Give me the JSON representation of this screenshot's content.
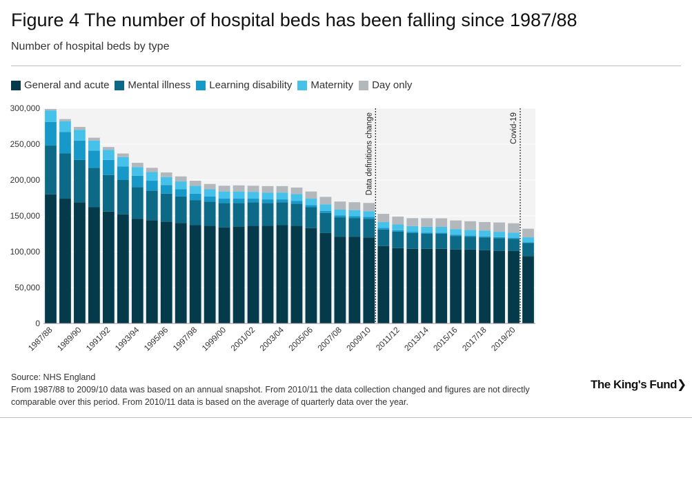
{
  "header": {
    "title": "Figure 4 The number of hospital beds has been falling since 1987/88",
    "subtitle": "Number of hospital beds by type"
  },
  "colors": {
    "general_and_acute": "#043a4a",
    "mental_illness": "#0d6a86",
    "learning_disability": "#1698c9",
    "maternity": "#45c1ea",
    "day_only": "#b3b8bc",
    "plot_background": "#f3f3f3",
    "gridline": "#ffffff"
  },
  "chart_data": {
    "type": "bar",
    "stacked": true,
    "title": "Number of hospital beds by type",
    "xlabel": "",
    "ylabel": "",
    "ylim": [
      0,
      300000
    ],
    "yticks": [
      "0",
      "50,000",
      "100,000",
      "150,000",
      "200,000",
      "250,000",
      "300,000"
    ],
    "ytick_values": [
      0,
      50000,
      100000,
      150000,
      200000,
      250000,
      300000
    ],
    "grid": true,
    "legend_position": "top-left",
    "categories": [
      "1987/88",
      "1988/89",
      "1989/90",
      "1990/91",
      "1991/92",
      "1992/93",
      "1993/94",
      "1994/95",
      "1995/96",
      "1996/97",
      "1997/98",
      "1998/99",
      "1999/00",
      "2000/01",
      "2001/02",
      "2002/03",
      "2003/04",
      "2004/05",
      "2005/06",
      "2006/07",
      "2007/08",
      "2008/09",
      "2009/10",
      "2010/11",
      "2011/12",
      "2012/13",
      "2013/14",
      "2014/15",
      "2015/16",
      "2016/17",
      "2017/18",
      "2018/19",
      "2019/20",
      "2020/21"
    ],
    "tick_labels": [
      {
        "index": 0,
        "label": "1987/88"
      },
      {
        "index": 2,
        "label": "1989/90"
      },
      {
        "index": 4,
        "label": "1991/92"
      },
      {
        "index": 6,
        "label": "1993/94"
      },
      {
        "index": 8,
        "label": "1995/96"
      },
      {
        "index": 10,
        "label": "1997/98"
      },
      {
        "index": 12,
        "label": "1999/00"
      },
      {
        "index": 14,
        "label": "2001/02"
      },
      {
        "index": 16,
        "label": "2003/04"
      },
      {
        "index": 18,
        "label": "2005/06"
      },
      {
        "index": 20,
        "label": "2007/08"
      },
      {
        "index": 22,
        "label": "2009/10"
      },
      {
        "index": 24,
        "label": "2011/12"
      },
      {
        "index": 26,
        "label": "2013/14"
      },
      {
        "index": 28,
        "label": "2015/16"
      },
      {
        "index": 30,
        "label": "2017/18"
      },
      {
        "index": 32,
        "label": "2019/20"
      }
    ],
    "series": [
      {
        "name": "General and acute",
        "color_key": "general_and_acute",
        "values": [
          180000,
          174000,
          169000,
          162000,
          156000,
          152000,
          146000,
          144000,
          142000,
          140000,
          137000,
          136000,
          134000,
          135000,
          136000,
          136000,
          137000,
          136000,
          133000,
          126000,
          121000,
          121000,
          120000,
          108000,
          105000,
          104000,
          104000,
          104000,
          103000,
          103000,
          102000,
          101000,
          101000,
          94000
        ]
      },
      {
        "name": "Mental illness",
        "color_key": "mental_illness",
        "values": [
          68000,
          63000,
          59000,
          55000,
          51000,
          48000,
          44000,
          41000,
          39000,
          37000,
          35000,
          34000,
          34000,
          33000,
          33000,
          32000,
          32000,
          31000,
          29000,
          28000,
          27000,
          26000,
          26000,
          23000,
          23000,
          22000,
          21000,
          21000,
          19000,
          18000,
          18000,
          18000,
          17000,
          18000
        ]
      },
      {
        "name": "Learning disability",
        "color_key": "learning_disability",
        "values": [
          33000,
          30000,
          27000,
          24000,
          21000,
          19000,
          16000,
          14000,
          12000,
          10000,
          9000,
          7000,
          6000,
          6000,
          5000,
          5000,
          4000,
          4000,
          3000,
          3000,
          2500,
          2500,
          2500,
          2300,
          2000,
          1800,
          1700,
          1600,
          1600,
          1500,
          1400,
          1300,
          1200,
          1100
        ]
      },
      {
        "name": "Maternity",
        "color_key": "maternity",
        "values": [
          16000,
          15000,
          15000,
          14000,
          14000,
          13000,
          12000,
          12000,
          11000,
          11000,
          11000,
          10000,
          10000,
          10000,
          9500,
          9500,
          9500,
          9500,
          9000,
          9000,
          8500,
          8500,
          8000,
          8000,
          8000,
          8000,
          8000,
          8000,
          8000,
          8000,
          8000,
          7500,
          7500,
          7000
        ]
      },
      {
        "name": "Day only",
        "color_key": "day_only",
        "values": [
          2000,
          3000,
          4000,
          4000,
          4000,
          5000,
          6000,
          6000,
          6500,
          7000,
          7000,
          7500,
          8000,
          8500,
          8500,
          9000,
          9000,
          9000,
          10000,
          10500,
          11000,
          11000,
          11500,
          11500,
          11000,
          11000,
          12000,
          12000,
          12000,
          12000,
          12000,
          13000,
          13000,
          12000
        ]
      }
    ],
    "annotations": [
      {
        "label": "Data definitions change",
        "after_index": 22
      },
      {
        "label": "Covid-19",
        "after_index": 32
      }
    ]
  },
  "legend": {
    "items": [
      {
        "label": "General and acute",
        "color_key": "general_and_acute"
      },
      {
        "label": "Mental illness",
        "color_key": "mental_illness"
      },
      {
        "label": "Learning disability",
        "color_key": "learning_disability"
      },
      {
        "label": "Maternity",
        "color_key": "maternity"
      },
      {
        "label": "Day only",
        "color_key": "day_only"
      }
    ]
  },
  "footer": {
    "source": "Source: NHS England",
    "note": "From 1987/88 to 2009/10 data was based on an annual snapshot. From 2010/11 the data collection changed and figures are not directly comparable over this period. From 2010/11 data is based on the average of quarterly data over the year.",
    "logo_text": "The King's Fund",
    "logo_chevron": "❯"
  }
}
